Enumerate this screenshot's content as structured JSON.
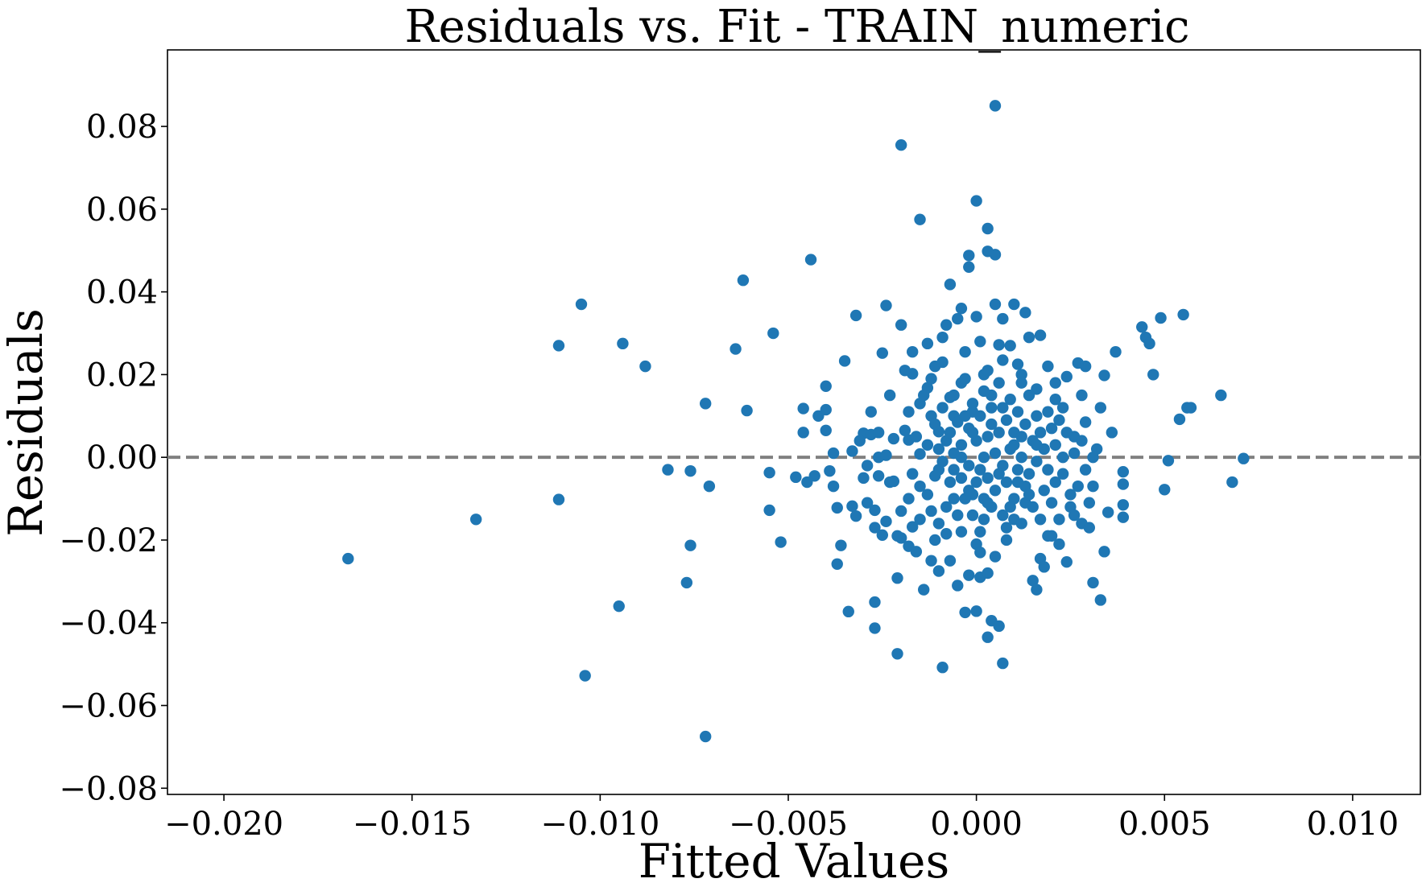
{
  "chart_data": {
    "type": "scatter",
    "title": "Residuals vs. Fit - TRAIN_numeric",
    "xlabel": "Fitted Values",
    "ylabel": "Residuals",
    "xlim": [
      -0.0215,
      0.0118
    ],
    "ylim": [
      -0.0815,
      0.0985
    ],
    "xticks": [
      -0.02,
      -0.015,
      -0.01,
      -0.005,
      0.0,
      0.005,
      0.01
    ],
    "xtick_labels": [
      "−0.020",
      "−0.015",
      "−0.010",
      "−0.005",
      "0.000",
      "0.005",
      "0.010"
    ],
    "yticks": [
      -0.08,
      -0.06,
      -0.04,
      -0.02,
      0.0,
      0.02,
      0.04,
      0.06,
      0.08
    ],
    "ytick_labels": [
      "−0.08",
      "−0.06",
      "−0.04",
      "−0.02",
      "0.00",
      "0.02",
      "0.04",
      "0.06",
      "0.08"
    ],
    "reference_line": {
      "y": 0.0,
      "style": "dashed",
      "color": "#808080"
    },
    "grid": false,
    "marker_color": "#1f77b4",
    "points": [
      [
        -0.0167,
        -0.0245
      ],
      [
        -0.0133,
        -0.015
      ],
      [
        -0.0111,
        0.027
      ],
      [
        -0.0111,
        -0.0102
      ],
      [
        -0.0105,
        0.037
      ],
      [
        -0.0104,
        -0.0528
      ],
      [
        -0.0095,
        -0.036
      ],
      [
        -0.0094,
        0.0275
      ],
      [
        -0.0088,
        0.022
      ],
      [
        -0.0082,
        -0.003
      ],
      [
        -0.0077,
        -0.0303
      ],
      [
        -0.0076,
        -0.0213
      ],
      [
        -0.0076,
        -0.0033
      ],
      [
        -0.0072,
        0.013
      ],
      [
        -0.0072,
        -0.0675
      ],
      [
        -0.0071,
        -0.007
      ],
      [
        -0.0064,
        0.0262
      ],
      [
        -0.0062,
        0.0428
      ],
      [
        -0.0061,
        0.0113
      ],
      [
        -0.0055,
        -0.0037
      ],
      [
        -0.0054,
        0.03
      ],
      [
        -0.0055,
        -0.0128
      ],
      [
        -0.0052,
        -0.0205
      ],
      [
        -0.0048,
        -0.0048
      ],
      [
        -0.0046,
        0.0118
      ],
      [
        -0.0046,
        0.006
      ],
      [
        -0.0045,
        -0.006
      ],
      [
        -0.0044,
        0.0478
      ],
      [
        -0.0042,
        0.01
      ],
      [
        -0.0043,
        -0.0045
      ],
      [
        -0.004,
        0.0172
      ],
      [
        -0.004,
        0.0115
      ],
      [
        -0.004,
        0.0065
      ],
      [
        -0.0039,
        -0.0033
      ],
      [
        -0.0038,
        -0.007
      ],
      [
        -0.0038,
        0.001
      ],
      [
        -0.0037,
        -0.0258
      ],
      [
        -0.0037,
        -0.0122
      ],
      [
        -0.0036,
        -0.0213
      ],
      [
        -0.0035,
        0.0233
      ],
      [
        -0.0034,
        -0.0373
      ],
      [
        -0.0033,
        0.0015
      ],
      [
        -0.0032,
        0.0343
      ],
      [
        -0.0033,
        -0.0118
      ],
      [
        -0.0032,
        -0.0142
      ],
      [
        -0.003,
        0.0058
      ],
      [
        -0.0029,
        -0.002
      ],
      [
        -0.0028,
        0.0055
      ],
      [
        -0.0027,
        -0.0128
      ],
      [
        -0.0027,
        -0.0413
      ],
      [
        -0.0027,
        -0.035
      ],
      [
        -0.0026,
        0.0
      ],
      [
        -0.0026,
        -0.0045
      ],
      [
        -0.0025,
        -0.0188
      ],
      [
        -0.0025,
        0.0252
      ],
      [
        -0.0024,
        0.0367
      ],
      [
        -0.0024,
        -0.0155
      ],
      [
        -0.0023,
        -0.006
      ],
      [
        -0.0022,
        0.0045
      ],
      [
        -0.0021,
        -0.0292
      ],
      [
        -0.0021,
        -0.0475
      ],
      [
        -0.002,
        0.032
      ],
      [
        -0.002,
        0.0755
      ],
      [
        -0.002,
        -0.0195
      ],
      [
        -0.0019,
        0.0065
      ],
      [
        -0.0018,
        0.0042
      ],
      [
        -0.0018,
        -0.0215
      ],
      [
        -0.0018,
        -0.01
      ],
      [
        -0.0017,
        0.0202
      ],
      [
        -0.0017,
        0.0255
      ],
      [
        -0.0017,
        -0.0168
      ],
      [
        -0.0016,
        -0.0228
      ],
      [
        -0.0015,
        0.013
      ],
      [
        -0.0015,
        -0.007
      ],
      [
        -0.0015,
        0.0008
      ],
      [
        -0.0015,
        0.0575
      ],
      [
        -0.0014,
        -0.032
      ],
      [
        -0.0013,
        0.0275
      ],
      [
        -0.0013,
        0.0168
      ],
      [
        -0.0012,
        -0.025
      ],
      [
        -0.0012,
        -0.013
      ],
      [
        -0.0012,
        0.01
      ],
      [
        -0.0011,
        0.022
      ],
      [
        -0.001,
        -0.003
      ],
      [
        -0.001,
        -0.0275
      ],
      [
        -0.001,
        0.0062
      ],
      [
        -0.0009,
        0.029
      ],
      [
        -0.0009,
        -0.0508
      ],
      [
        -0.0008,
        0.032
      ],
      [
        -0.0008,
        -0.0185
      ],
      [
        -0.0007,
        0.0145
      ],
      [
        -0.0007,
        0.0418
      ],
      [
        -0.0007,
        -0.025
      ],
      [
        -0.0006,
        0.01
      ],
      [
        -0.0006,
        -0.01
      ],
      [
        -0.0005,
        0.0335
      ],
      [
        -0.0005,
        -0.031
      ],
      [
        -0.0004,
        0.036
      ],
      [
        -0.0004,
        0.018
      ],
      [
        -0.0004,
        -0.018
      ],
      [
        -0.0003,
        -0.0375
      ],
      [
        -0.0003,
        0.0255
      ],
      [
        -0.0002,
        0.0488
      ],
      [
        -0.0002,
        0.046
      ],
      [
        -0.0002,
        -0.0285
      ],
      [
        -0.0001,
        -0.009
      ],
      [
        -0.0001,
        0.011
      ],
      [
        -0.0,
        -0.021
      ],
      [
        0.0,
        0.062
      ],
      [
        0.0,
        -0.0372
      ],
      [
        0.0,
        0.034
      ],
      [
        0.0001,
        -0.029
      ],
      [
        0.0001,
        0.028
      ],
      [
        0.0001,
        -0.023
      ],
      [
        0.0002,
        0.02
      ],
      [
        0.0002,
        -0.015
      ],
      [
        0.0003,
        0.0553
      ],
      [
        0.0003,
        0.0498
      ],
      [
        0.0003,
        -0.0435
      ],
      [
        0.0003,
        -0.028
      ],
      [
        0.0004,
        0.015
      ],
      [
        0.0004,
        -0.0395
      ],
      [
        0.0005,
        0.049
      ],
      [
        0.0005,
        0.037
      ],
      [
        0.0005,
        0.085
      ],
      [
        0.0005,
        -0.024
      ],
      [
        0.0006,
        -0.0408
      ],
      [
        0.0006,
        0.0272
      ],
      [
        0.0007,
        0.0335
      ],
      [
        0.0007,
        -0.0498
      ],
      [
        0.0007,
        0.0235
      ],
      [
        0.0008,
        -0.02
      ],
      [
        0.0009,
        0.027
      ],
      [
        0.001,
        0.037
      ],
      [
        0.001,
        -0.015
      ],
      [
        0.0011,
        0.0225
      ],
      [
        0.0012,
        0.018
      ],
      [
        0.0013,
        0.035
      ],
      [
        0.0013,
        -0.011
      ],
      [
        0.0014,
        0.029
      ],
      [
        0.0015,
        -0.0298
      ],
      [
        0.0016,
        -0.032
      ],
      [
        0.0016,
        0.0165
      ],
      [
        0.0017,
        0.0295
      ],
      [
        0.0017,
        -0.0245
      ],
      [
        0.0018,
        -0.0265
      ],
      [
        0.0019,
        0.022
      ],
      [
        0.002,
        -0.019
      ],
      [
        0.0021,
        0.014
      ],
      [
        0.0022,
        -0.021
      ],
      [
        0.0023,
        0.012
      ],
      [
        0.0024,
        0.0195
      ],
      [
        0.0024,
        -0.0253
      ],
      [
        0.0025,
        -0.009
      ],
      [
        0.0026,
        0.005
      ],
      [
        0.0027,
        0.0228
      ],
      [
        0.0028,
        -0.016
      ],
      [
        0.0029,
        0.0085
      ],
      [
        0.0029,
        0.022
      ],
      [
        0.003,
        -0.017
      ],
      [
        0.0031,
        -0.0303
      ],
      [
        0.0031,
        -0.007
      ],
      [
        0.0032,
        0.002
      ],
      [
        0.0033,
        0.012
      ],
      [
        0.0033,
        -0.0345
      ],
      [
        0.0034,
        0.0198
      ],
      [
        0.0034,
        -0.0228
      ],
      [
        0.0035,
        -0.0133
      ],
      [
        0.0036,
        0.006
      ],
      [
        0.0037,
        0.0255
      ],
      [
        0.0039,
        -0.0035
      ],
      [
        0.0039,
        -0.0065
      ],
      [
        0.0039,
        -0.0115
      ],
      [
        0.0039,
        -0.0145
      ],
      [
        0.0044,
        0.0315
      ],
      [
        0.0045,
        0.029
      ],
      [
        0.0046,
        0.0275
      ],
      [
        0.0047,
        0.02
      ],
      [
        0.0049,
        0.0337
      ],
      [
        0.005,
        -0.0078
      ],
      [
        0.0051,
        -0.0008
      ],
      [
        0.0054,
        0.0092
      ],
      [
        0.0055,
        0.0345
      ],
      [
        0.0056,
        0.012
      ],
      [
        0.0057,
        0.012
      ],
      [
        0.0065,
        0.015
      ],
      [
        0.0068,
        -0.006
      ],
      [
        0.0071,
        -0.0003
      ],
      [
        -0.0026,
        0.006
      ],
      [
        -0.0024,
        0.0005
      ],
      [
        -0.0022,
        -0.0058
      ],
      [
        -0.002,
        -0.013
      ],
      [
        -0.0018,
        0.011
      ],
      [
        -0.0017,
        -0.004
      ],
      [
        -0.0016,
        0.005
      ],
      [
        -0.0015,
        -0.015
      ],
      [
        -0.0014,
        0.015
      ],
      [
        -0.0013,
        0.003
      ],
      [
        -0.0013,
        -0.009
      ],
      [
        -0.0012,
        0.019
      ],
      [
        -0.0011,
        -0.0045
      ],
      [
        -0.0011,
        0.008
      ],
      [
        -0.001,
        -0.016
      ],
      [
        -0.0009,
        0.012
      ],
      [
        -0.0009,
        -0.001
      ],
      [
        -0.0008,
        0.004
      ],
      [
        -0.0008,
        -0.012
      ],
      [
        -0.0007,
        0.006
      ],
      [
        -0.0007,
        -0.006
      ],
      [
        -0.0006,
        0.015
      ],
      [
        -0.0006,
        0.001
      ],
      [
        -0.0005,
        -0.014
      ],
      [
        -0.0005,
        0.0085
      ],
      [
        -0.0004,
        -0.005
      ],
      [
        -0.0004,
        0.003
      ],
      [
        -0.0003,
        0.019
      ],
      [
        -0.0003,
        -0.01
      ],
      [
        -0.0002,
        0.007
      ],
      [
        -0.0002,
        -0.002
      ],
      [
        -0.0001,
        0.013
      ],
      [
        -0.0001,
        -0.014
      ],
      [
        0.0,
        0.004
      ],
      [
        0.0,
        -0.006
      ],
      [
        0.0001,
        0.01
      ],
      [
        0.0001,
        -0.003
      ],
      [
        0.0002,
        0.016
      ],
      [
        0.0002,
        -0.01
      ],
      [
        0.0003,
        0.005
      ],
      [
        0.0003,
        -0.005
      ],
      [
        0.0004,
        0.012
      ],
      [
        0.0004,
        -0.012
      ],
      [
        0.0005,
        0.001
      ],
      [
        0.0005,
        -0.008
      ],
      [
        0.0006,
        0.018
      ],
      [
        0.0006,
        0.006
      ],
      [
        0.0007,
        -0.002
      ],
      [
        0.0007,
        -0.014
      ],
      [
        0.0008,
        0.009
      ],
      [
        0.0008,
        -0.006
      ],
      [
        0.0009,
        0.014
      ],
      [
        0.0009,
        0.002
      ],
      [
        0.001,
        -0.01
      ],
      [
        0.001,
        0.006
      ],
      [
        0.0011,
        -0.003
      ],
      [
        0.0011,
        0.011
      ],
      [
        0.0012,
        -0.016
      ],
      [
        0.0012,
        0.0
      ],
      [
        0.0013,
        0.008
      ],
      [
        0.0013,
        -0.007
      ],
      [
        0.0014,
        0.015
      ],
      [
        0.0014,
        -0.004
      ],
      [
        0.0015,
        0.004
      ],
      [
        0.0015,
        -0.012
      ],
      [
        0.0016,
        0.01
      ],
      [
        0.0016,
        -0.001
      ],
      [
        0.0017,
        0.006
      ],
      [
        0.0017,
        -0.015
      ],
      [
        0.0018,
        0.002
      ],
      [
        0.0018,
        -0.008
      ],
      [
        0.0019,
        0.011
      ],
      [
        0.0019,
        -0.003
      ],
      [
        0.002,
        0.007
      ],
      [
        0.002,
        -0.011
      ],
      [
        0.0021,
        0.003
      ],
      [
        0.0021,
        -0.006
      ],
      [
        0.0022,
        0.009
      ],
      [
        0.0022,
        -0.015
      ],
      [
        0.0023,
        0.0
      ],
      [
        0.0023,
        -0.004
      ],
      [
        0.0024,
        0.006
      ],
      [
        0.0025,
        -0.012
      ],
      [
        0.0026,
        0.001
      ],
      [
        0.0027,
        -0.007
      ],
      [
        0.0028,
        0.004
      ],
      [
        0.0029,
        -0.003
      ],
      [
        0.003,
        -0.011
      ],
      [
        0.0031,
        0.0
      ],
      [
        -0.003,
        -0.005
      ],
      [
        -0.0031,
        0.004
      ],
      [
        -0.0029,
        -0.011
      ],
      [
        -0.0028,
        0.011
      ],
      [
        -0.0027,
        -0.017
      ],
      [
        -0.0023,
        0.015
      ],
      [
        -0.0021,
        -0.019
      ],
      [
        -0.0019,
        0.021
      ],
      [
        -0.0011,
        -0.02
      ],
      [
        -0.0009,
        0.023
      ],
      [
        0.0001,
        -0.018
      ],
      [
        0.0003,
        0.021
      ],
      [
        0.0008,
        -0.017
      ],
      [
        0.0012,
        0.02
      ],
      [
        0.0019,
        -0.019
      ],
      [
        0.0021,
        0.018
      ],
      [
        0.0026,
        -0.014
      ],
      [
        0.0028,
        0.015
      ],
      [
        -0.0004,
        0.0
      ],
      [
        0.0002,
        0.0
      ],
      [
        0.0006,
        -0.004
      ],
      [
        0.001,
        0.003
      ],
      [
        -0.0002,
        -0.008
      ],
      [
        0.0004,
        0.008
      ],
      [
        -0.0006,
        -0.003
      ],
      [
        0.0012,
        0.005
      ],
      [
        -0.001,
        0.002
      ],
      [
        0.0014,
        -0.009
      ],
      [
        0.0009,
        -0.012
      ],
      [
        -0.0001,
        0.006
      ],
      [
        0.0016,
        0.003
      ],
      [
        0.0003,
        -0.011
      ],
      [
        -0.0003,
        0.01
      ],
      [
        0.0007,
        0.012
      ],
      [
        0.0011,
        -0.006
      ]
    ]
  }
}
